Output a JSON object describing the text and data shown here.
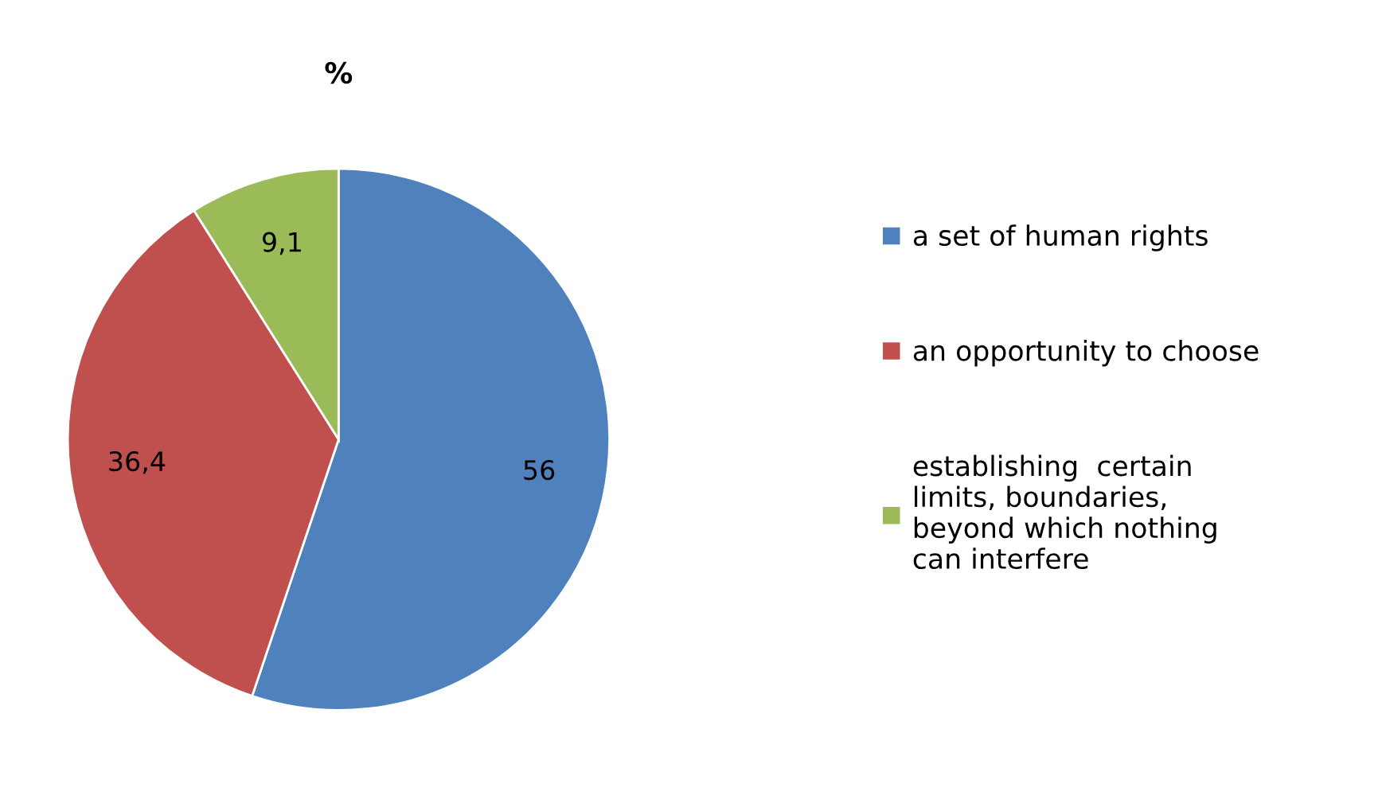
{
  "chart_data": {
    "type": "pie",
    "title": "%",
    "categories": [
      "a set of human rights",
      "an opportunity to choose",
      "establishing  certain\nlimits, boundaries,\nbeyond which nothing\ncan interfere"
    ],
    "values": [
      56,
      36.4,
      9.1
    ],
    "value_labels": [
      "56",
      "36,4",
      "9,1"
    ],
    "colors": [
      "#4f81bd",
      "#c0504d",
      "#9bbb59"
    ],
    "legend": "right"
  }
}
